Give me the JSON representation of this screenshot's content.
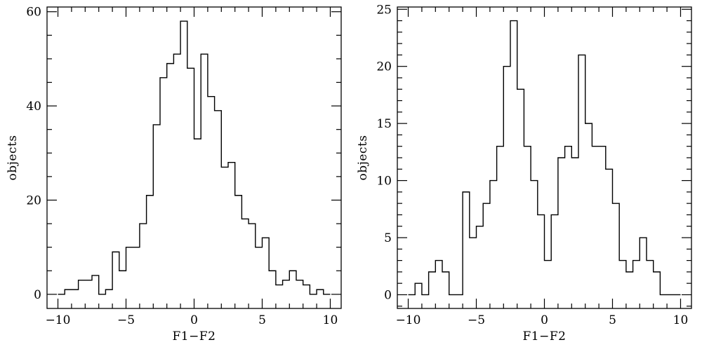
{
  "chart_data": [
    {
      "type": "histogram",
      "xlabel": "F1−F2",
      "ylabel": "objects",
      "xlim": [
        -10.8,
        10.8
      ],
      "ylim": [
        -3,
        61
      ],
      "x_major_ticks": [
        -10,
        -5,
        0,
        5,
        10
      ],
      "x_tick_labels": [
        "−10",
        "−5",
        "0",
        "5",
        "10"
      ],
      "y_major_ticks": [
        0,
        20,
        40,
        60
      ],
      "y_tick_labels": [
        "0",
        "20",
        "40",
        "60"
      ],
      "x_minor_step": 1,
      "y_minor_step": 5,
      "bin_edges": [
        -10,
        -9.5,
        -9,
        -8.5,
        -8,
        -7.5,
        -7,
        -6.5,
        -6,
        -5.5,
        -5,
        -4.5,
        -4,
        -3.5,
        -3,
        -2.5,
        -2,
        -1.5,
        -1,
        -0.5,
        0,
        0.5,
        1,
        1.5,
        2,
        2.5,
        3,
        3.5,
        4,
        4.5,
        5,
        5.5,
        6,
        6.5,
        7,
        7.5,
        8,
        8.5,
        9,
        9.5,
        10
      ],
      "counts": [
        0,
        1,
        1,
        3,
        3,
        4,
        0,
        1,
        9,
        5,
        10,
        10,
        15,
        21,
        36,
        46,
        49,
        51,
        58,
        48,
        33,
        51,
        42,
        39,
        27,
        28,
        21,
        16,
        15,
        10,
        12,
        5,
        2,
        3,
        5,
        3,
        2,
        0,
        1,
        0
      ]
    },
    {
      "type": "histogram",
      "xlabel": "F1−F2",
      "ylabel": "objects",
      "xlim": [
        -10.8,
        10.8
      ],
      "ylim": [
        -1.2,
        25.2
      ],
      "x_major_ticks": [
        -10,
        -5,
        0,
        5,
        10
      ],
      "x_tick_labels": [
        "−10",
        "−5",
        "0",
        "5",
        "10"
      ],
      "y_major_ticks": [
        0,
        5,
        10,
        15,
        20,
        25
      ],
      "y_tick_labels": [
        "0",
        "5",
        "10",
        "15",
        "20",
        "25"
      ],
      "x_minor_step": 1,
      "y_minor_step": 1,
      "bin_edges": [
        -10,
        -9.5,
        -9,
        -8.5,
        -8,
        -7.5,
        -7,
        -6.5,
        -6,
        -5.5,
        -5,
        -4.5,
        -4,
        -3.5,
        -3,
        -2.5,
        -2,
        -1.5,
        -1,
        -0.5,
        0,
        0.5,
        1,
        1.5,
        2,
        2.5,
        3,
        3.5,
        4,
        4.5,
        5,
        5.5,
        6,
        6.5,
        7,
        7.5,
        8,
        8.5,
        9,
        9.5,
        10
      ],
      "counts": [
        0,
        1,
        0,
        2,
        3,
        2,
        0,
        0,
        9,
        5,
        6,
        8,
        10,
        13,
        20,
        24,
        18,
        13,
        10,
        7,
        3,
        7,
        12,
        13,
        12,
        21,
        15,
        13,
        13,
        11,
        8,
        3,
        2,
        3,
        5,
        3,
        2,
        0,
        0,
        0
      ]
    }
  ]
}
